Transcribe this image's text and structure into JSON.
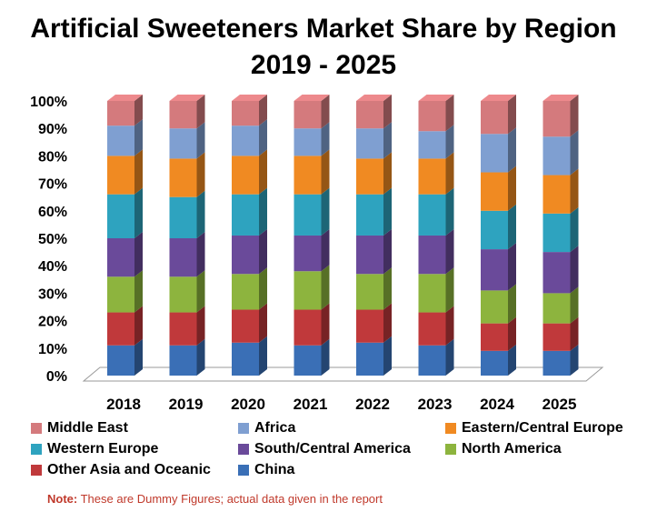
{
  "title_line1": "Artificial Sweeteners Market Share by Region",
  "title_line2": "2019 - 2025",
  "note_label": "Note:",
  "note_text": " These are Dummy Figures; actual data given in the report",
  "chart_data": {
    "type": "bar",
    "stacked": true,
    "three_d": true,
    "categories": [
      "2018",
      "2019",
      "2020",
      "2021",
      "2022",
      "2023",
      "2024",
      "2025"
    ],
    "ylim": [
      0,
      100
    ],
    "yticks": [
      "0%",
      "10%",
      "20%",
      "30%",
      "40%",
      "50%",
      "60%",
      "70%",
      "80%",
      "90%",
      "100%"
    ],
    "grid": false,
    "legend_position": "bottom",
    "series": [
      {
        "name": "China",
        "color": "#3a6fb6",
        "values": [
          11,
          11,
          12,
          11,
          12,
          11,
          9,
          9
        ]
      },
      {
        "name": "Other Asia and Oceanic",
        "color": "#c0393b",
        "values": [
          12,
          12,
          12,
          13,
          12,
          12,
          10,
          10
        ]
      },
      {
        "name": "North America",
        "color": "#8db43e",
        "values": [
          13,
          13,
          13,
          14,
          13,
          14,
          12,
          11
        ]
      },
      {
        "name": "South/Central America",
        "color": "#6a4a9a",
        "values": [
          14,
          14,
          14,
          13,
          14,
          14,
          15,
          15
        ]
      },
      {
        "name": "Western Europe",
        "color": "#2ea3bf",
        "values": [
          16,
          15,
          15,
          15,
          15,
          15,
          14,
          14
        ]
      },
      {
        "name": "Eastern/Central Europe",
        "color": "#f08a22",
        "values": [
          14,
          14,
          14,
          14,
          13,
          13,
          14,
          14
        ]
      },
      {
        "name": "Africa",
        "color": "#7f9fd1",
        "values": [
          11,
          11,
          11,
          10,
          11,
          10,
          14,
          14
        ]
      },
      {
        "name": "Middle East",
        "color": "#d47a7d",
        "values": [
          9,
          10,
          9,
          10,
          10,
          11,
          12,
          13
        ]
      }
    ]
  },
  "legend": [
    {
      "name": "Middle East",
      "color": "#d47a7d"
    },
    {
      "name": "Africa",
      "color": "#7f9fd1"
    },
    {
      "name": "Eastern/Central Europe",
      "color": "#f08a22"
    },
    {
      "name": "Western Europe",
      "color": "#2ea3bf"
    },
    {
      "name": "South/Central America",
      "color": "#6a4a9a"
    },
    {
      "name": "North America",
      "color": "#8db43e"
    },
    {
      "name": "Other Asia and Oceanic",
      "color": "#c0393b"
    },
    {
      "name": "China",
      "color": "#3a6fb6"
    }
  ]
}
